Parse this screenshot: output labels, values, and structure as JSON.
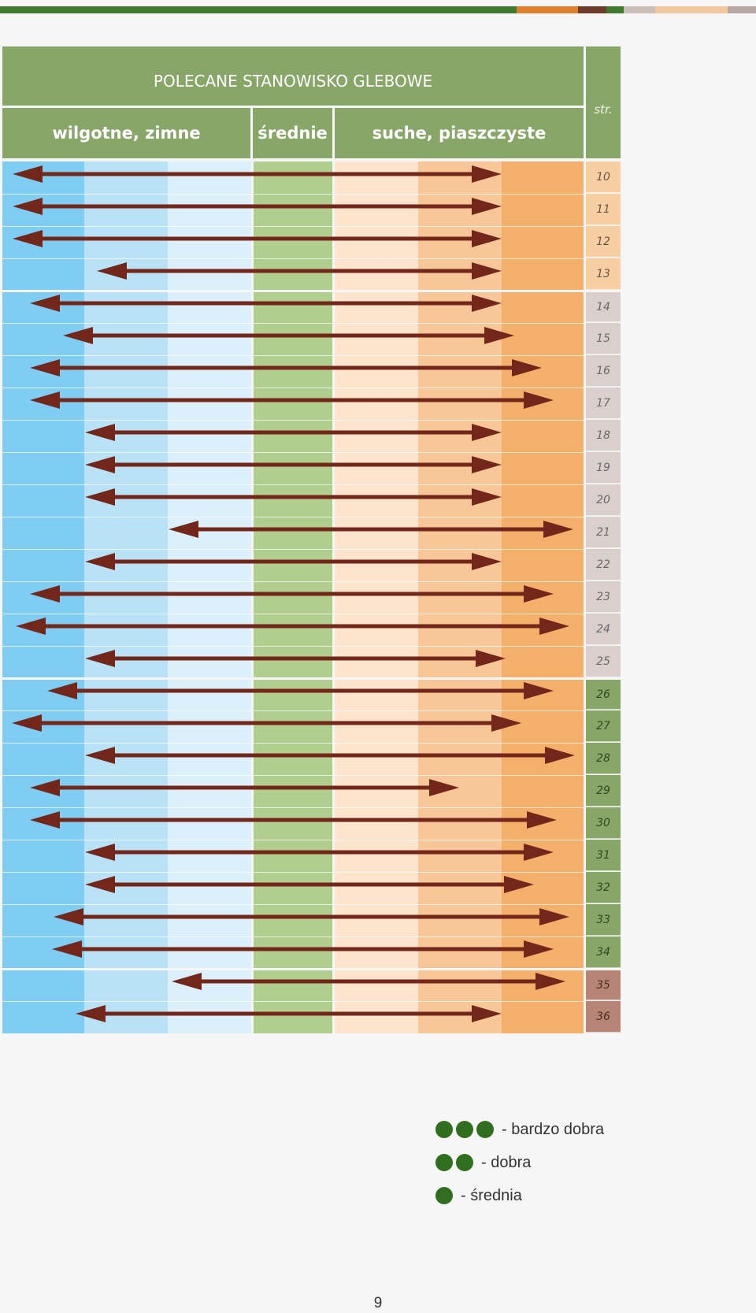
{
  "header": {
    "title": "POLECANE STANOWISKO GLEBOWE",
    "col_wet": "wilgotne, zimne",
    "col_mid": "średnie",
    "col_dry": "suche, piaszczyste",
    "col_page": "str."
  },
  "colors": {
    "header_green": "#87a667",
    "arrow": "#73271b",
    "dot": "#2f6e1f",
    "bands": [
      "#7fcdf2",
      "#b9e2f7",
      "#dcf0fb",
      "#b0cf8f",
      "#fde4cd",
      "#f8c797",
      "#f4b06a"
    ]
  },
  "rows": [
    {
      "page": "10"
    },
    {
      "page": "11"
    },
    {
      "page": "12"
    },
    {
      "page": "13"
    },
    {
      "page": "14"
    },
    {
      "page": "15"
    },
    {
      "page": "16"
    },
    {
      "page": "17"
    },
    {
      "page": "18"
    },
    {
      "page": "19"
    },
    {
      "page": "20"
    },
    {
      "page": "21"
    },
    {
      "page": "22"
    },
    {
      "page": "23"
    },
    {
      "page": "24"
    },
    {
      "page": "25"
    },
    {
      "page": "26"
    },
    {
      "page": "27"
    },
    {
      "page": "28"
    },
    {
      "page": "29"
    },
    {
      "page": "30"
    },
    {
      "page": "31"
    },
    {
      "page": "32"
    },
    {
      "page": "33"
    },
    {
      "page": "34"
    },
    {
      "page": "35"
    },
    {
      "page": "36"
    }
  ],
  "legend": [
    {
      "dots": 3,
      "label": "- bardzo dobra"
    },
    {
      "dots": 2,
      "label": "- dobra"
    },
    {
      "dots": 1,
      "label": "- średnia"
    }
  ],
  "page_number": "9"
}
